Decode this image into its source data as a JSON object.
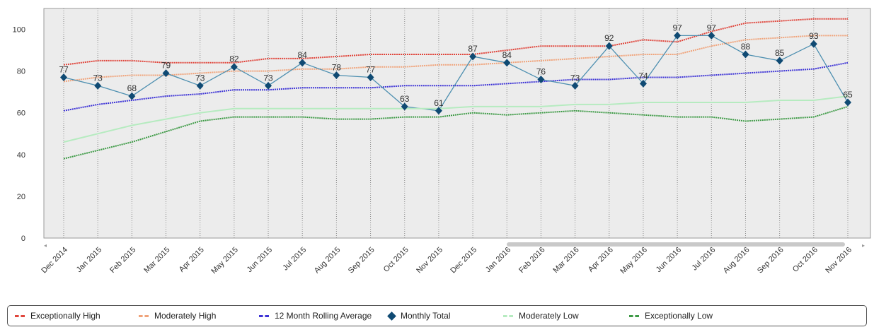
{
  "chart_data": {
    "type": "line",
    "categories": [
      "Dec 2014",
      "Jan 2015",
      "Feb 2015",
      "Mar 2015",
      "Apr 2015",
      "May 2015",
      "Jun 2015",
      "Jul 2015",
      "Aug 2015",
      "Sep 2015",
      "Oct 2015",
      "Nov 2015",
      "Dec 2015",
      "Jan 2016",
      "Feb 2016",
      "Mar 2016",
      "Apr 2016",
      "May 2016",
      "Jun 2016",
      "Jul 2016",
      "Aug 2016",
      "Sep 2016",
      "Oct 2016",
      "Nov 2016"
    ],
    "ylim": [
      0,
      110
    ],
    "yticks": [
      0,
      20,
      40,
      60,
      80,
      100
    ],
    "grid": true,
    "legend_position": "bottom",
    "series": [
      {
        "name": "Exceptionally High",
        "color": "#e0453b",
        "style": "dashed",
        "values": [
          83,
          85,
          85,
          84,
          84,
          84,
          86,
          86,
          87,
          88,
          88,
          88,
          88,
          90,
          92,
          92,
          92,
          95,
          94,
          99,
          103,
          104,
          105,
          105
        ]
      },
      {
        "name": "Moderately High",
        "color": "#f0a37a",
        "style": "dashed",
        "values": [
          75,
          77,
          78,
          78,
          79,
          80,
          80,
          81,
          81,
          82,
          82,
          83,
          83,
          84,
          85,
          86,
          87,
          88,
          88,
          92,
          95,
          96,
          97,
          97
        ]
      },
      {
        "name": "12 Month Rolling Average",
        "color": "#3d33d6",
        "style": "dashed",
        "values": [
          61,
          64,
          66,
          68,
          69,
          71,
          71,
          72,
          72,
          72,
          73,
          73,
          73,
          74,
          75,
          76,
          76,
          77,
          77,
          78,
          79,
          80,
          81,
          84
        ]
      },
      {
        "name": "Monthly Total",
        "color": "#4d8fb0",
        "style": "solid-markers",
        "values": [
          77,
          73,
          68,
          79,
          73,
          82,
          73,
          84,
          78,
          77,
          63,
          61,
          87,
          84,
          76,
          73,
          92,
          74,
          97,
          97,
          88,
          85,
          93,
          65
        ],
        "labels": [
          "77",
          "73",
          "68",
          "79",
          "73",
          "82",
          "73",
          "84",
          "78",
          "77",
          "63",
          "61",
          "87",
          "84",
          "76",
          "73",
          "92",
          "74",
          "97",
          "97",
          "88",
          "85",
          "93",
          "65"
        ]
      },
      {
        "name": "Moderately Low",
        "color": "#b6ebc0",
        "style": "solid",
        "values": [
          46,
          50,
          54,
          57,
          60,
          62,
          62,
          62,
          62,
          62,
          62,
          62,
          63,
          63,
          63,
          64,
          64,
          65,
          65,
          65,
          65,
          66,
          66,
          68
        ]
      },
      {
        "name": "Exceptionally Low",
        "color": "#3d9a45",
        "style": "dashed",
        "values": [
          38,
          42,
          46,
          51,
          56,
          58,
          58,
          58,
          57,
          57,
          58,
          58,
          60,
          59,
          60,
          61,
          60,
          59,
          58,
          58,
          56,
          57,
          58,
          63
        ]
      }
    ]
  },
  "legend": {
    "items": [
      {
        "label": "Exceptionally High",
        "color": "#e0453b"
      },
      {
        "label": "Moderately High",
        "color": "#f0a37a"
      },
      {
        "label": "12 Month Rolling Average",
        "color": "#3d33d6"
      },
      {
        "label": "Monthly Total",
        "color": "#0f4a73"
      },
      {
        "label": "Moderately Low",
        "color": "#b6ebc0"
      },
      {
        "label": "Exceptionally Low",
        "color": "#3d9a45"
      }
    ]
  }
}
